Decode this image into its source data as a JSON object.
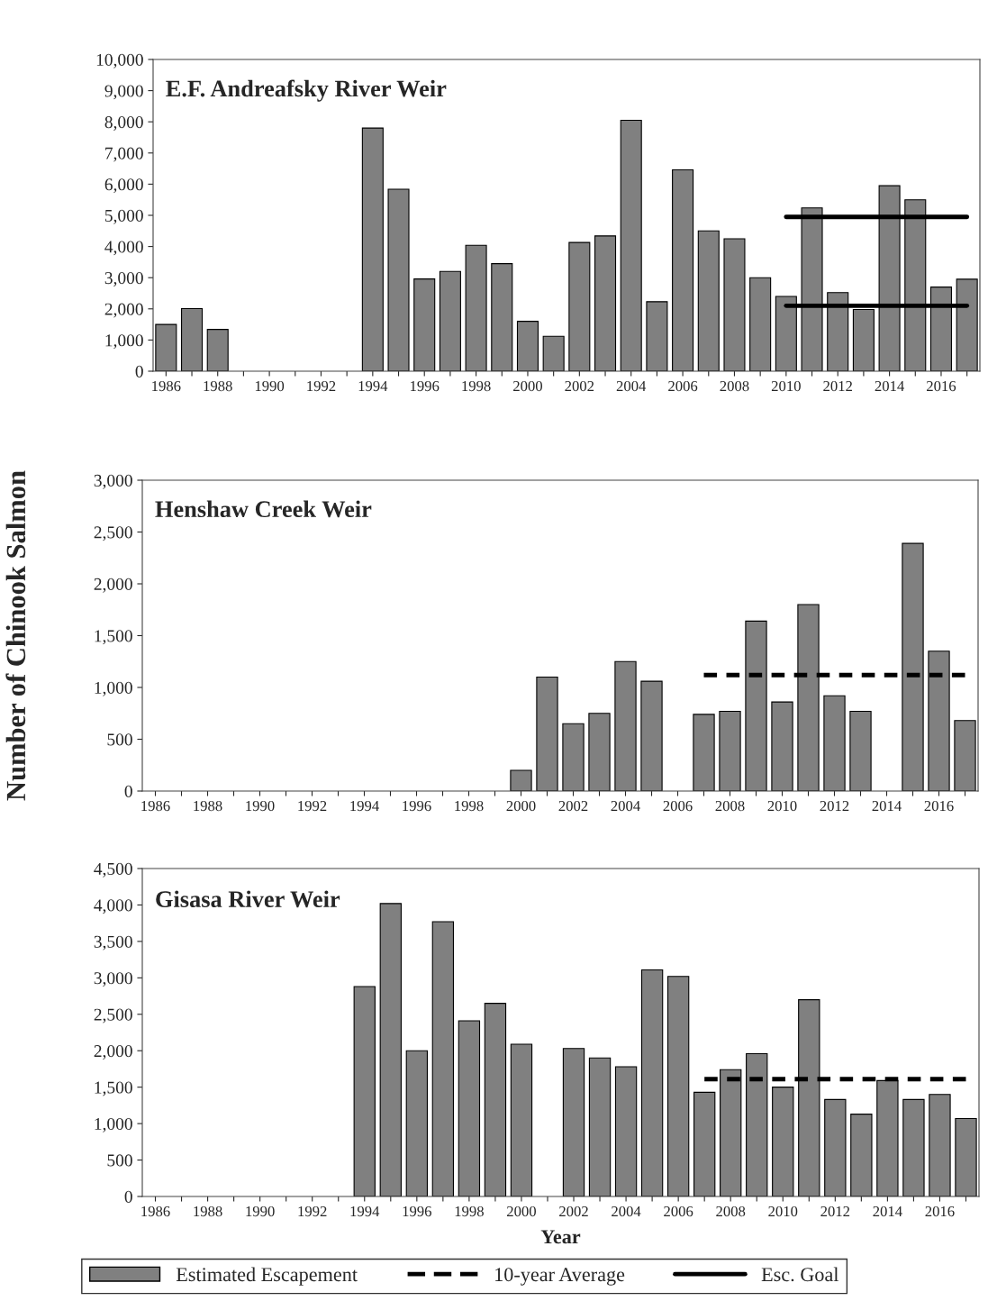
{
  "chart_data": [
    {
      "type": "bar",
      "title": "E.F. Andreafsky River Weir",
      "categories": [
        "1986",
        null,
        "1988",
        null,
        "1990",
        null,
        "1992",
        null,
        "1994",
        null,
        "1996",
        null,
        "1998",
        null,
        "2000",
        null,
        "2002",
        null,
        "2004",
        null,
        "2006",
        null,
        "2008",
        null,
        "2010",
        null,
        "2012",
        null,
        "2014",
        null,
        "2016",
        null
      ],
      "series": [
        {
          "name": "Estimated Escapement",
          "color": "#808080",
          "values": [
            1500,
            2010,
            1340,
            null,
            null,
            null,
            null,
            null,
            7800,
            5840,
            2960,
            3200,
            4040,
            3450,
            1600,
            1120,
            4130,
            4340,
            8050,
            2230,
            6460,
            4500,
            4250,
            3000,
            2400,
            5240,
            2520,
            1980,
            5950,
            5500,
            2700,
            2950
          ]
        },
        {
          "type": "line",
          "name": "Esc. Goal",
          "color": "#000000",
          "line_style": "solid",
          "values": [
            null,
            null,
            null,
            null,
            null,
            null,
            null,
            null,
            null,
            null,
            null,
            null,
            null,
            null,
            null,
            null,
            null,
            null,
            null,
            null,
            null,
            null,
            null,
            null,
            2100,
            2100,
            2100,
            2100,
            2100,
            2100,
            2100,
            2100
          ]
        },
        {
          "type": "line",
          "color": "#000000",
          "line_style": "solid",
          "values": [
            null,
            null,
            null,
            null,
            null,
            null,
            null,
            null,
            null,
            null,
            null,
            null,
            null,
            null,
            null,
            null,
            null,
            null,
            null,
            null,
            null,
            null,
            null,
            null,
            4950,
            4950,
            4950,
            4950,
            4950,
            4950,
            4950,
            4950
          ]
        }
      ],
      "ylim": [
        0,
        10000
      ],
      "yticks": [
        0,
        {
          "value": 1000,
          "label": "1,000"
        },
        {
          "value": 2000,
          "label": "2,000"
        },
        {
          "value": 3000,
          "label": "3,000"
        },
        {
          "value": 4000,
          "label": "4,000"
        },
        {
          "value": 5000,
          "label": "5,000"
        },
        {
          "value": 6000,
          "label": "6,000"
        },
        {
          "value": 7000,
          "label": "7,000"
        },
        {
          "value": 8000,
          "label": "8,000"
        },
        {
          "value": 9000,
          "label": "9,000"
        },
        {
          "value": 10000,
          "label": "10,000"
        }
      ],
      "grid": false,
      "legend": "bottom"
    },
    {
      "type": "bar",
      "title": "Henshaw Creek Weir",
      "ylabel": "Number of Chinook Salmon",
      "categories": [
        "1986",
        null,
        "1988",
        null,
        "1990",
        null,
        "1992",
        null,
        "1994",
        null,
        "1996",
        null,
        "1998",
        null,
        "2000",
        null,
        "2002",
        null,
        "2004",
        null,
        "2006",
        null,
        "2008",
        null,
        "2010",
        null,
        "2012",
        null,
        "2014",
        null,
        "2016",
        null
      ],
      "series": [
        {
          "name": "Estimated Escapement",
          "color": "#808080",
          "values": [
            null,
            null,
            null,
            null,
            null,
            null,
            null,
            null,
            null,
            null,
            null,
            null,
            null,
            null,
            200,
            1100,
            650,
            750,
            1250,
            1060,
            null,
            740,
            770,
            1640,
            860,
            1800,
            920,
            770,
            null,
            2390,
            1350,
            680
          ]
        },
        {
          "type": "line",
          "name": "10-year Average",
          "color": "#000000",
          "line_style": "dashed",
          "values": [
            null,
            null,
            null,
            null,
            null,
            null,
            null,
            null,
            null,
            null,
            null,
            null,
            null,
            null,
            null,
            null,
            null,
            null,
            null,
            null,
            null,
            1120,
            1120,
            1120,
            1120,
            1120,
            1120,
            1120,
            1120,
            1120,
            1120,
            1120
          ]
        }
      ],
      "ylim": [
        0,
        3000
      ],
      "yticks": [
        0,
        500,
        {
          "value": 1000,
          "label": "1,000"
        },
        {
          "value": 1500,
          "label": "1,500"
        },
        {
          "value": 2000,
          "label": "2,000"
        },
        {
          "value": 2500,
          "label": "2,500"
        },
        {
          "value": 3000,
          "label": "3,000"
        }
      ],
      "grid": false,
      "legend": "bottom"
    },
    {
      "type": "bar",
      "title": "Gisasa River Weir",
      "xlabel": "Year",
      "categories": [
        "1986",
        null,
        "1988",
        null,
        "1990",
        null,
        "1992",
        null,
        "1994",
        null,
        "1996",
        null,
        "1998",
        null,
        "2000",
        null,
        "2002",
        null,
        "2004",
        null,
        "2006",
        null,
        "2008",
        null,
        "2010",
        null,
        "2012",
        null,
        "2014",
        null,
        "2016",
        null
      ],
      "series": [
        {
          "name": "Estimated Escapement",
          "color": "#808080",
          "values": [
            null,
            null,
            null,
            null,
            null,
            null,
            null,
            null,
            2880,
            4020,
            2000,
            3770,
            2410,
            2650,
            2090,
            null,
            2030,
            1900,
            1780,
            3110,
            3020,
            1430,
            1740,
            1960,
            1500,
            2700,
            1330,
            1130,
            1590,
            1330,
            1400,
            1070
          ]
        },
        {
          "type": "line",
          "name": "10-year Average",
          "color": "#000000",
          "line_style": "dashed",
          "values": [
            null,
            null,
            null,
            null,
            null,
            null,
            null,
            null,
            null,
            null,
            null,
            null,
            null,
            null,
            null,
            null,
            null,
            null,
            null,
            null,
            null,
            1610,
            1610,
            1610,
            1610,
            1610,
            1610,
            1610,
            1610,
            1610,
            1610,
            1610
          ]
        }
      ],
      "ylim": [
        0,
        4500
      ],
      "yticks": [
        0,
        500,
        {
          "value": 1000,
          "label": "1,000"
        },
        {
          "value": 1500,
          "label": "1,500"
        },
        {
          "value": 2000,
          "label": "2,000"
        },
        {
          "value": 2500,
          "label": "2,500"
        },
        {
          "value": 3000,
          "label": "3,000"
        },
        {
          "value": 3500,
          "label": "3,500"
        },
        {
          "value": 4000,
          "label": "4,000"
        },
        {
          "value": 4500,
          "label": "4,500"
        }
      ],
      "grid": false,
      "legend": "bottom"
    }
  ]
}
